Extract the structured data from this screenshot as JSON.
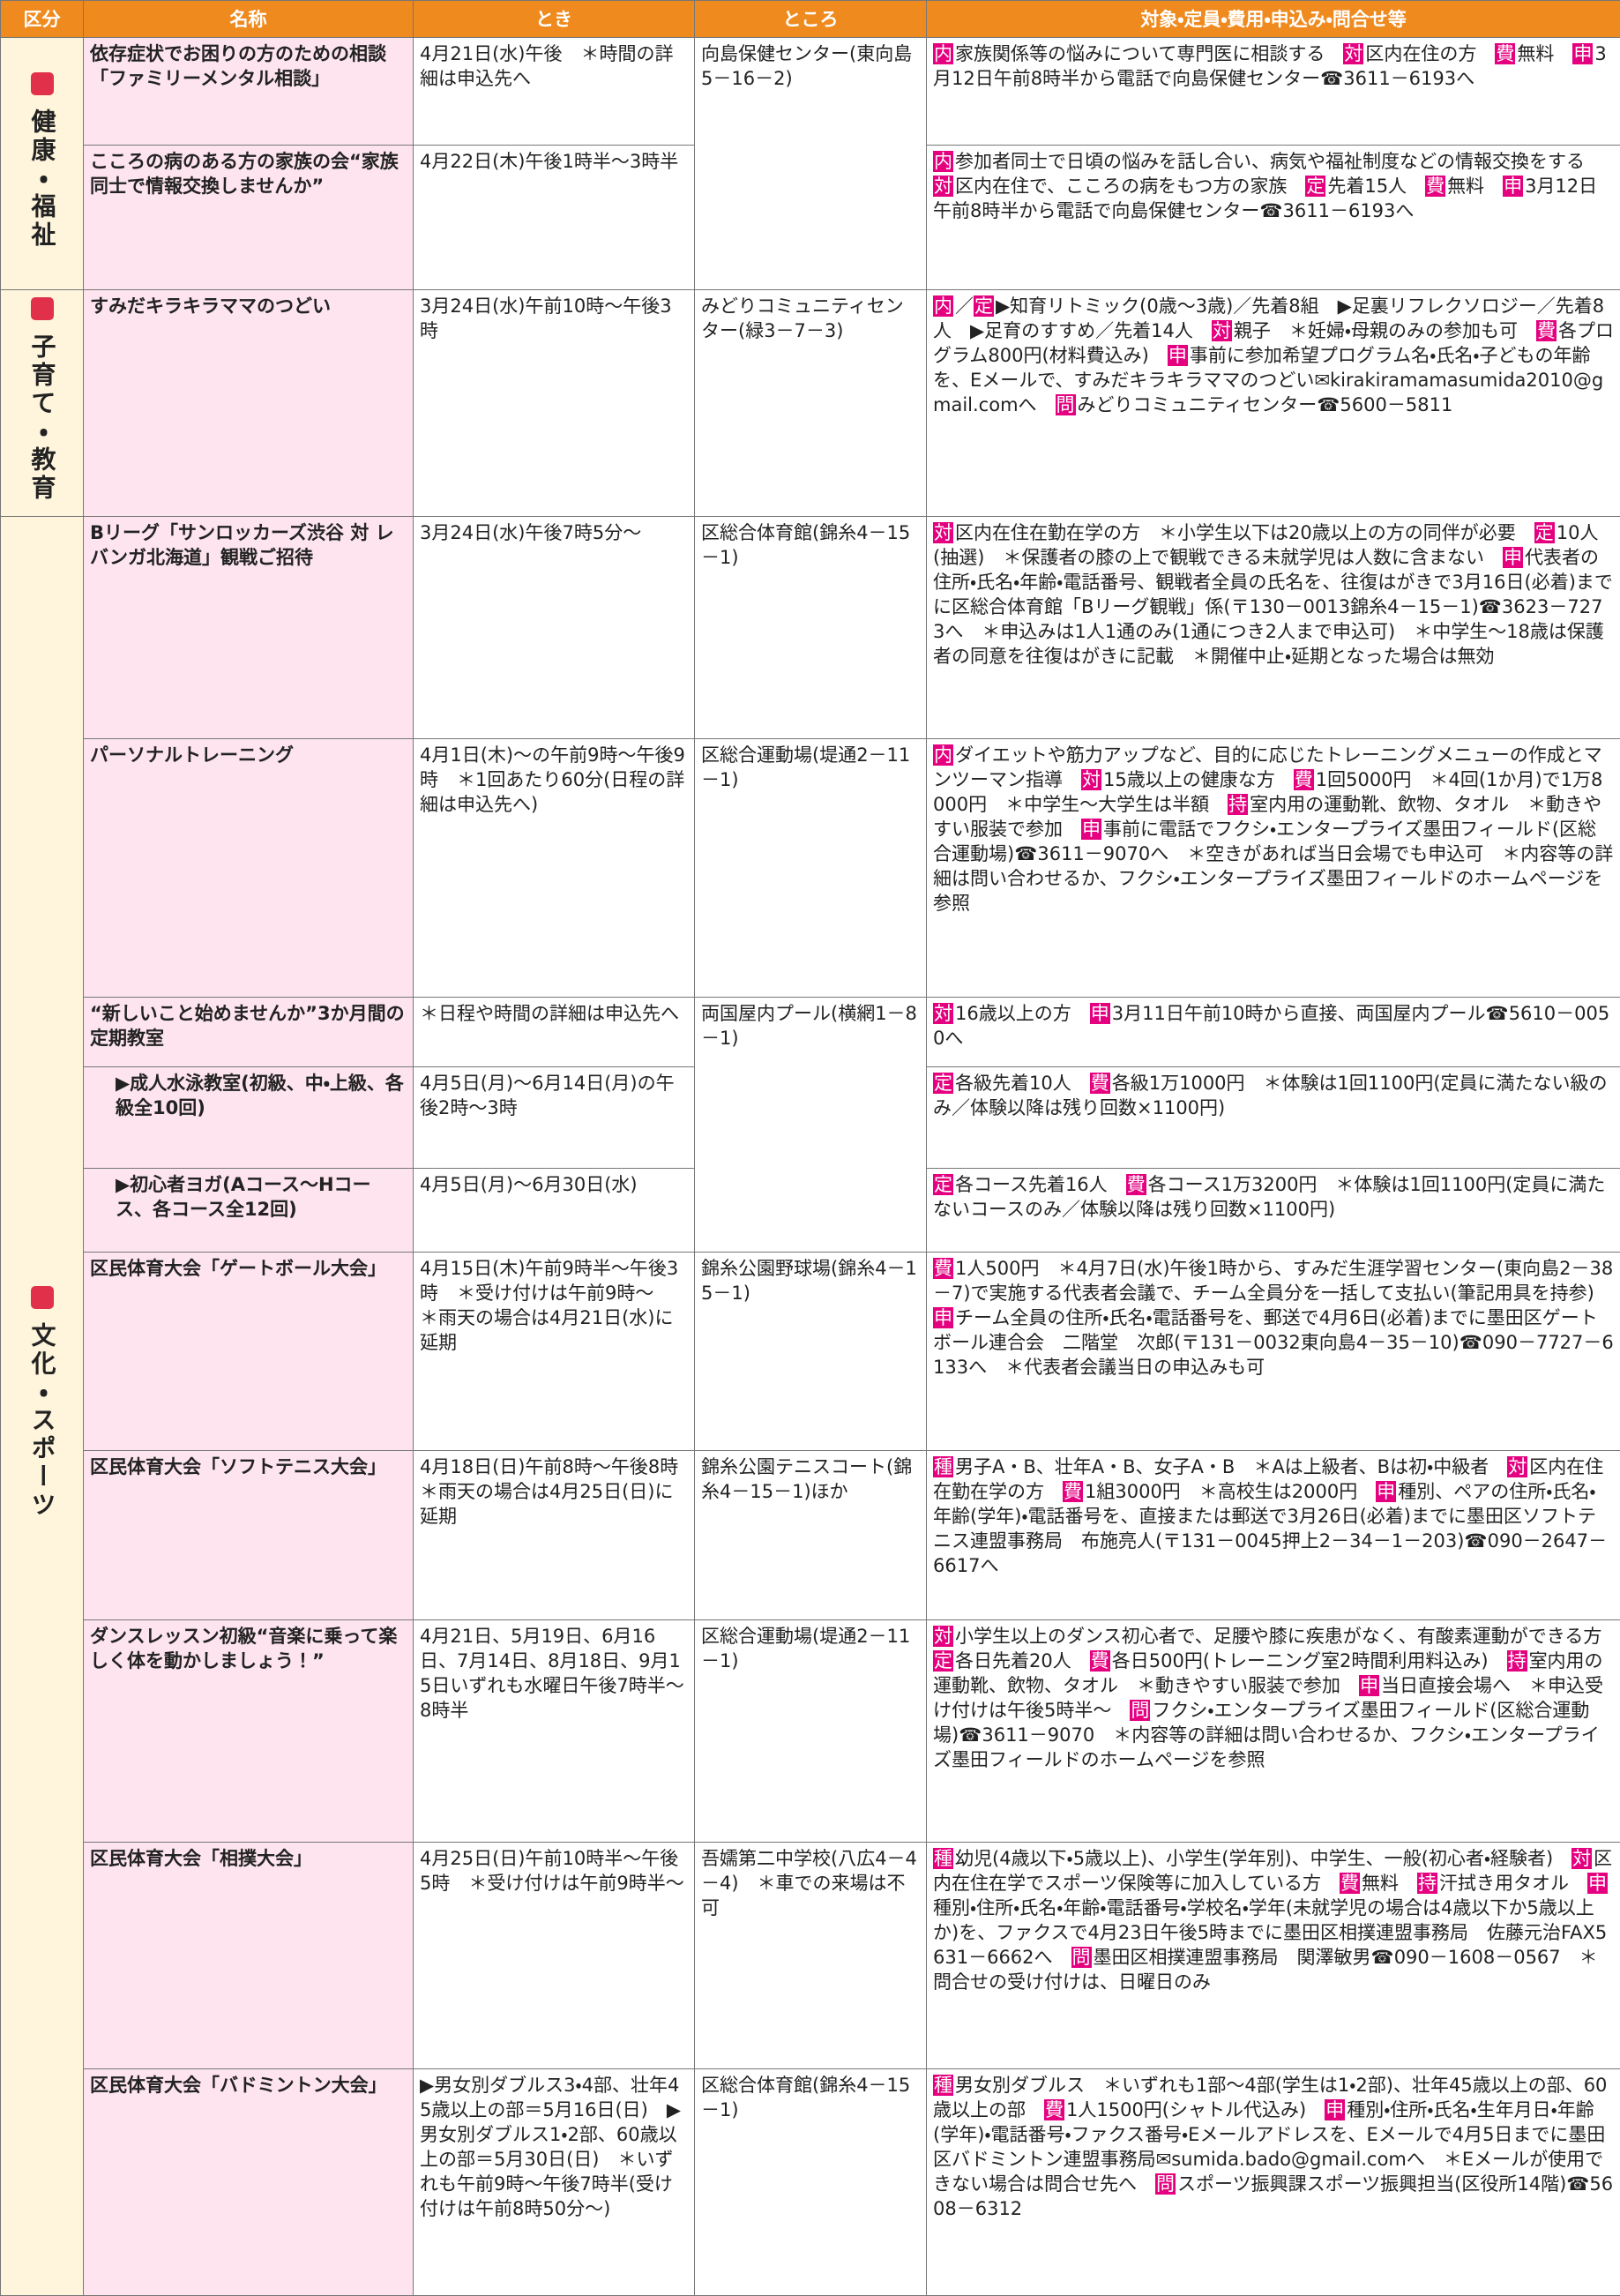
{
  "header": [
    "区分",
    "名称",
    "とき",
    "ところ",
    "対象・定員・費用・申込み・問合せ等"
  ],
  "sections": [
    {
      "category": "健康・福祉",
      "rows": [
        {
          "name": "依存症状でお困りの方のための相談「ファミリーメンタル相談」",
          "when": "4月21日(水)午後　＊時間の詳細は申込先へ",
          "where": "向島保健センター(東向島5－16－2)",
          "details": [
            {
              "badge": "内"
            },
            {
              "text": "家族関係等の悩みについて専門医に相談する　"
            },
            {
              "badge": "対"
            },
            {
              "text": "区内在住の方　"
            },
            {
              "badge": "費"
            },
            {
              "text": "無料　"
            },
            {
              "badge": "申"
            },
            {
              "text": "3月12日午前8時半から電話で向島保健センター☎3611－6193へ"
            }
          ]
        },
        {
          "name": "こころの病のある方の家族の会“家族同士で情報交換しませんか”",
          "when": "4月22日(木)午後1時半～3時半",
          "details": [
            {
              "badge": "内"
            },
            {
              "text": "参加者同士で日頃の悩みを話し合い、病気や福祉制度などの情報交換をする　"
            },
            {
              "badge": "対"
            },
            {
              "text": "区内在住で、こころの病をもつ方の家族　"
            },
            {
              "badge": "定"
            },
            {
              "text": "先着15人　"
            },
            {
              "badge": "費"
            },
            {
              "text": "無料　"
            },
            {
              "badge": "申"
            },
            {
              "text": "3月12日午前8時半から電話で向島保健センター☎3611－6193へ"
            }
          ]
        }
      ]
    },
    {
      "category": "子育て・教育",
      "rows": [
        {
          "name": "すみだキラキラママのつどい",
          "when": "3月24日(水)午前10時～午後3時",
          "where": "みどりコミュニティセンター(緑3－7－3)",
          "details": [
            {
              "badge": "内"
            },
            {
              "text": "／"
            },
            {
              "badge": "定"
            },
            {
              "text": "▶知育リトミック(0歳～3歳)／先着8組　▶足裏リフレクソロジー／先着8人　▶足育のすすめ／先着14人　"
            },
            {
              "badge": "対"
            },
            {
              "text": "親子　＊妊婦・母親のみの参加も可　"
            },
            {
              "badge": "費"
            },
            {
              "text": "各プログラム800円(材料費込み)　"
            },
            {
              "badge": "申"
            },
            {
              "text": "事前に参加希望プログラム名・氏名・子どもの年齢を、Eメールで、すみだキラキラママのつどい✉kirakiramamasumida2010@gmail.comへ　"
            },
            {
              "badge": "問"
            },
            {
              "text": "みどりコミュニティセンター☎5600－5811"
            }
          ]
        }
      ]
    },
    {
      "category": "文化・スポーツ",
      "rows": [
        {
          "name": "Bリーグ「サンロッカーズ渋谷 対 レバンガ北海道」観戦ご招待",
          "when": "3月24日(水)午後7時5分～",
          "where": "区総合体育館(錦糸4－15－1)",
          "details": [
            {
              "badge": "対"
            },
            {
              "text": "区内在住在勤在学の方　＊小学生以下は20歳以上の方の同伴が必要　"
            },
            {
              "badge": "定"
            },
            {
              "text": "10人(抽選)　＊保護者の膝の上で観戦できる未就学児は人数に含まない　"
            },
            {
              "badge": "申"
            },
            {
              "text": "代表者の住所・氏名・年齢・電話番号、観戦者全員の氏名を、往復はがきで3月16日(必着)までに区総合体育館「Bリーグ観戦」係(〒130－0013錦糸4－15－1)☎3623－7273へ　＊申込みは1人1通のみ(1通につき2人まで申込可)　＊中学生～18歳は保護者の同意を往復はがきに記載　＊開催中止・延期となった場合は無効"
            }
          ]
        },
        {
          "name": "パーソナルトレーニング",
          "when": "4月1日(木)～の午前9時～午後9時　＊1回あたり60分(日程の詳細は申込先へ)",
          "where": "区総合運動場(堤通2－11－1)",
          "details": [
            {
              "badge": "内"
            },
            {
              "text": "ダイエットや筋力アップなど、目的に応じたトレーニングメニューの作成とマンツーマン指導　"
            },
            {
              "badge": "対"
            },
            {
              "text": "15歳以上の健康な方　"
            },
            {
              "badge": "費"
            },
            {
              "text": "1回5000円　＊4回(1か月)で1万8000円　＊中学生～大学生は半額　"
            },
            {
              "badge": "持"
            },
            {
              "text": "室内用の運動靴、飲物、タオル　＊動きやすい服装で参加　"
            },
            {
              "badge": "申"
            },
            {
              "text": "事前に電話でフクシ・エンタープライズ墨田フィールド(区総合運動場)☎3611－9070へ　＊空きがあれば当日会場でも申込可　＊内容等の詳細は問い合わせるか、フクシ・エンタープライズ墨田フィールドのホームページを参照"
            }
          ]
        },
        {
          "name": "“新しいこと始めませんか”3か月間の定期教室",
          "when": "＊日程や時間の詳細は申込先へ",
          "where": "両国屋内プール(横網1－8－1)",
          "details": [
            {
              "badge": "対"
            },
            {
              "text": "16歳以上の方　"
            },
            {
              "badge": "申"
            },
            {
              "text": "3月11日午前10時から直接、両国屋内プール☎5610－0050へ"
            }
          ]
        },
        {
          "name": "▶成人水泳教室(初級、中・上級、各級全10回)",
          "when": "4月5日(月)～6月14日(月)の午後2時～3時",
          "details": [
            {
              "badge": "定"
            },
            {
              "text": "各級先着10人　"
            },
            {
              "badge": "費"
            },
            {
              "text": "各級1万1000円　＊体験は1回1100円(定員に満たない級のみ／体験以降は残り回数×1100円)"
            }
          ]
        },
        {
          "name": "▶初心者ヨガ(Aコース～Hコース、各コース全12回)",
          "when": "4月5日(月)～6月30日(水)",
          "details": [
            {
              "badge": "定"
            },
            {
              "text": "各コース先着16人　"
            },
            {
              "badge": "費"
            },
            {
              "text": "各コース1万3200円　＊体験は1回1100円(定員に満たないコースのみ／体験以降は残り回数×1100円)"
            }
          ]
        },
        {
          "name": "区民体育大会「ゲートボール大会」",
          "when": "4月15日(木)午前9時半～午後3時　＊受け付けは午前9時～　＊雨天の場合は4月21日(水)に延期",
          "where": "錦糸公園野球場(錦糸4－15－1)",
          "details": [
            {
              "badge": "費"
            },
            {
              "text": "1人500円　＊4月7日(水)午後1時から、すみだ生涯学習センター(東向島2－38－7)で実施する代表者会議で、チーム全員分を一括して支払い(筆記用具を持参)　"
            },
            {
              "badge": "申"
            },
            {
              "text": "チーム全員の住所・氏名・電話番号を、郵送で4月6日(必着)までに墨田区ゲートボール連合会　二階堂　次郎(〒131－0032東向島4－35－10)☎090－7727－6133へ　＊代表者会議当日の申込みも可"
            }
          ]
        },
        {
          "name": "区民体育大会「ソフトテニス大会」",
          "when": "4月18日(日)午前8時～午後8時　＊雨天の場合は4月25日(日)に延期",
          "where": "錦糸公園テニスコート(錦糸4－15－1)ほか",
          "details": [
            {
              "badge": "種"
            },
            {
              "text": "男子A・B、壮年A・B、女子A・B　＊Aは上級者、Bは初・中級者　"
            },
            {
              "badge": "対"
            },
            {
              "text": "区内在住在勤在学の方　"
            },
            {
              "badge": "費"
            },
            {
              "text": "1組3000円　＊高校生は2000円　"
            },
            {
              "badge": "申"
            },
            {
              "text": "種別、ペアの住所・氏名・年齢(学年)・電話番号を、直接または郵送で3月26日(必着)までに墨田区ソフトテニス連盟事務局　布施亮人(〒131－0045押上2－34－1－203)☎090－2647－6617へ"
            }
          ]
        },
        {
          "name": "ダンスレッスン初級“音楽に乗って楽しく体を動かしましょう！”",
          "when": "4月21日、5月19日、6月16日、7月14日、8月18日、9月15日いずれも水曜日午後7時半～8時半",
          "where": "区総合運動場(堤通2－11－1)",
          "details": [
            {
              "badge": "対"
            },
            {
              "text": "小学生以上のダンス初心者で、足腰や膝に疾患がなく、有酸素運動ができる方　"
            },
            {
              "badge": "定"
            },
            {
              "text": "各日先着20人　"
            },
            {
              "badge": "費"
            },
            {
              "text": "各日500円(トレーニング室2時間利用料込み)　"
            },
            {
              "badge": "持"
            },
            {
              "text": "室内用の運動靴、飲物、タオル　＊動きやすい服装で参加　"
            },
            {
              "badge": "申"
            },
            {
              "text": "当日直接会場へ　＊申込受け付けは午後5時半～　"
            },
            {
              "badge": "問"
            },
            {
              "text": "フクシ・エンタープライズ墨田フィールド(区総合運動場)☎3611－9070　＊内容等の詳細は問い合わせるか、フクシ・エンタープライズ墨田フィールドのホームページを参照"
            }
          ]
        },
        {
          "name": "区民体育大会「相撲大会」",
          "when": "4月25日(日)午前10時半～午後5時　＊受け付けは午前9時半～",
          "where": "吾嬬第二中学校(八広4－4－4)　＊車での来場は不可",
          "details": [
            {
              "badge": "種"
            },
            {
              "text": "幼児(4歳以下・5歳以上)、小学生(学年別)、中学生、一般(初心者・経験者)　"
            },
            {
              "badge": "対"
            },
            {
              "text": "区内在住在学でスポーツ保険等に加入している方　"
            },
            {
              "badge": "費"
            },
            {
              "text": "無料　"
            },
            {
              "badge": "持"
            },
            {
              "text": "汗拭き用タオル　"
            },
            {
              "badge": "申"
            },
            {
              "text": "種別・住所・氏名・年齢・電話番号・学校名・学年(未就学児の場合は4歳以下か5歳以上か)を、ファクスで4月23日午後5時までに墨田区相撲連盟事務局　佐藤元治FAX5631－6662へ　"
            },
            {
              "badge": "問"
            },
            {
              "text": "墨田区相撲連盟事務局　関澤敏男☎090－1608－0567　＊問合せの受け付けは、日曜日のみ"
            }
          ]
        },
        {
          "name": "区民体育大会「バドミントン大会」",
          "when": "▶男女別ダブルス3・4部、壮年45歳以上の部＝5月16日(日)　▶男女別ダブルス1・2部、60歳以上の部＝5月30日(日)　＊いずれも午前9時～午後7時半(受け付けは午前8時50分～)",
          "where": "区総合体育館(錦糸4－15－1)",
          "details": [
            {
              "badge": "種"
            },
            {
              "text": "男女別ダブルス　＊いずれも1部～4部(学生は1・2部)、壮年45歳以上の部、60歳以上の部　"
            },
            {
              "badge": "費"
            },
            {
              "text": "1人1500円(シャトル代込み)　"
            },
            {
              "badge": "申"
            },
            {
              "text": "種別・住所・氏名・生年月日・年齢(学年)・電話番号・ファクス番号・Eメールアドレスを、Eメールで4月5日までに墨田区バドミントン連盟事務局✉sumida.bado@gmail.comへ　＊Eメールが使用できない場合は問合せ先へ　"
            },
            {
              "badge": "問"
            },
            {
              "text": "スポーツ振興課スポーツ振興担当(区役所14階)☎5608－6312"
            }
          ]
        }
      ]
    }
  ]
}
